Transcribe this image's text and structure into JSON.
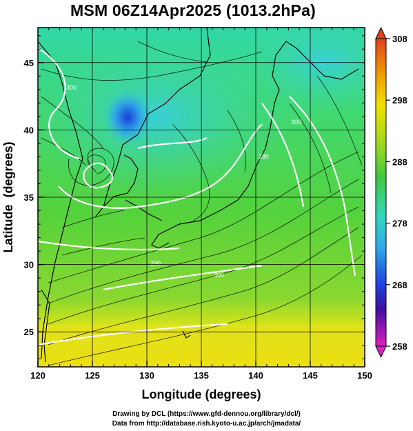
{
  "title": "MSM 06Z14Apr2025 (1013.2hPa)",
  "map": {
    "xlabel": "Longitude (degrees)",
    "ylabel": "Latitude  (degrees)",
    "xticks": [
      120,
      125,
      130,
      135,
      140,
      145,
      150
    ],
    "yticks": [
      25,
      30,
      35,
      40,
      45
    ],
    "xlim": [
      120,
      150
    ],
    "ylim": [
      22.4,
      47.6
    ],
    "field": "temperature (K) at 1013.2hPa with wind streamlines",
    "contour_labels": [
      "300",
      "300",
      "280",
      "290",
      "300"
    ]
  },
  "colorbar": {
    "ticks": [
      "308",
      "298",
      "288",
      "278",
      "268",
      "258"
    ],
    "min": 258,
    "max": 308
  },
  "credits": {
    "line1": "Drawing by DCL (https://www.gfd-dennou.org/library/dcl/)",
    "line2": "Data from http://database.rish.kyoto-u.ac.jp/arch/jmadata/"
  },
  "colors": {
    "warm": "#f2e600",
    "mid": "#5cd63a",
    "cool": "#3fd6c8",
    "cold": "#1050e0",
    "contour": "#ffffff",
    "coast": "#000000"
  }
}
